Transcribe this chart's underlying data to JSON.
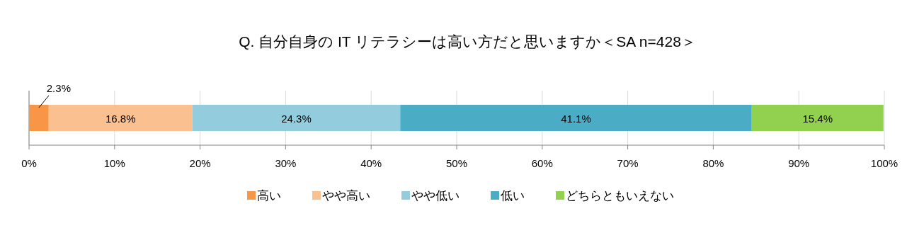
{
  "chart_data": {
    "type": "bar",
    "orientation": "horizontal",
    "stacked": true,
    "title": "Q. 自分自身の IT リテラシーは高い方だと思いますか＜SA n=428＞",
    "categories": [
      null
    ],
    "series": [
      {
        "name": "高い",
        "color": "#f79646",
        "values": [
          2.3
        ],
        "value_labels": [
          "2.3%"
        ]
      },
      {
        "name": "やや高い",
        "color": "#fac090",
        "values": [
          16.8
        ],
        "value_labels": [
          "16.8%"
        ]
      },
      {
        "name": "やや低い",
        "color": "#93cddd",
        "values": [
          24.3
        ],
        "value_labels": [
          "24.3%"
        ]
      },
      {
        "name": "低い",
        "color": "#4bacc6",
        "values": [
          41.1
        ],
        "value_labels": [
          "41.1%"
        ]
      },
      {
        "name": "どちらともいえない",
        "color": "#92d050",
        "values": [
          15.4
        ],
        "value_labels": [
          "15.4%"
        ]
      }
    ],
    "xlim": [
      0,
      100
    ],
    "xticks": [
      {
        "value": 0,
        "label": "0%"
      },
      {
        "value": 10,
        "label": "10%"
      },
      {
        "value": 20,
        "label": "20%"
      },
      {
        "value": 30,
        "label": "30%"
      },
      {
        "value": 40,
        "label": "40%"
      },
      {
        "value": 50,
        "label": "50%"
      },
      {
        "value": 60,
        "label": "60%"
      },
      {
        "value": 70,
        "label": "70%"
      },
      {
        "value": 80,
        "label": "80%"
      },
      {
        "value": 90,
        "label": "90%"
      },
      {
        "value": 100,
        "label": "100%"
      }
    ],
    "grid": "x",
    "legend": "bottom"
  }
}
